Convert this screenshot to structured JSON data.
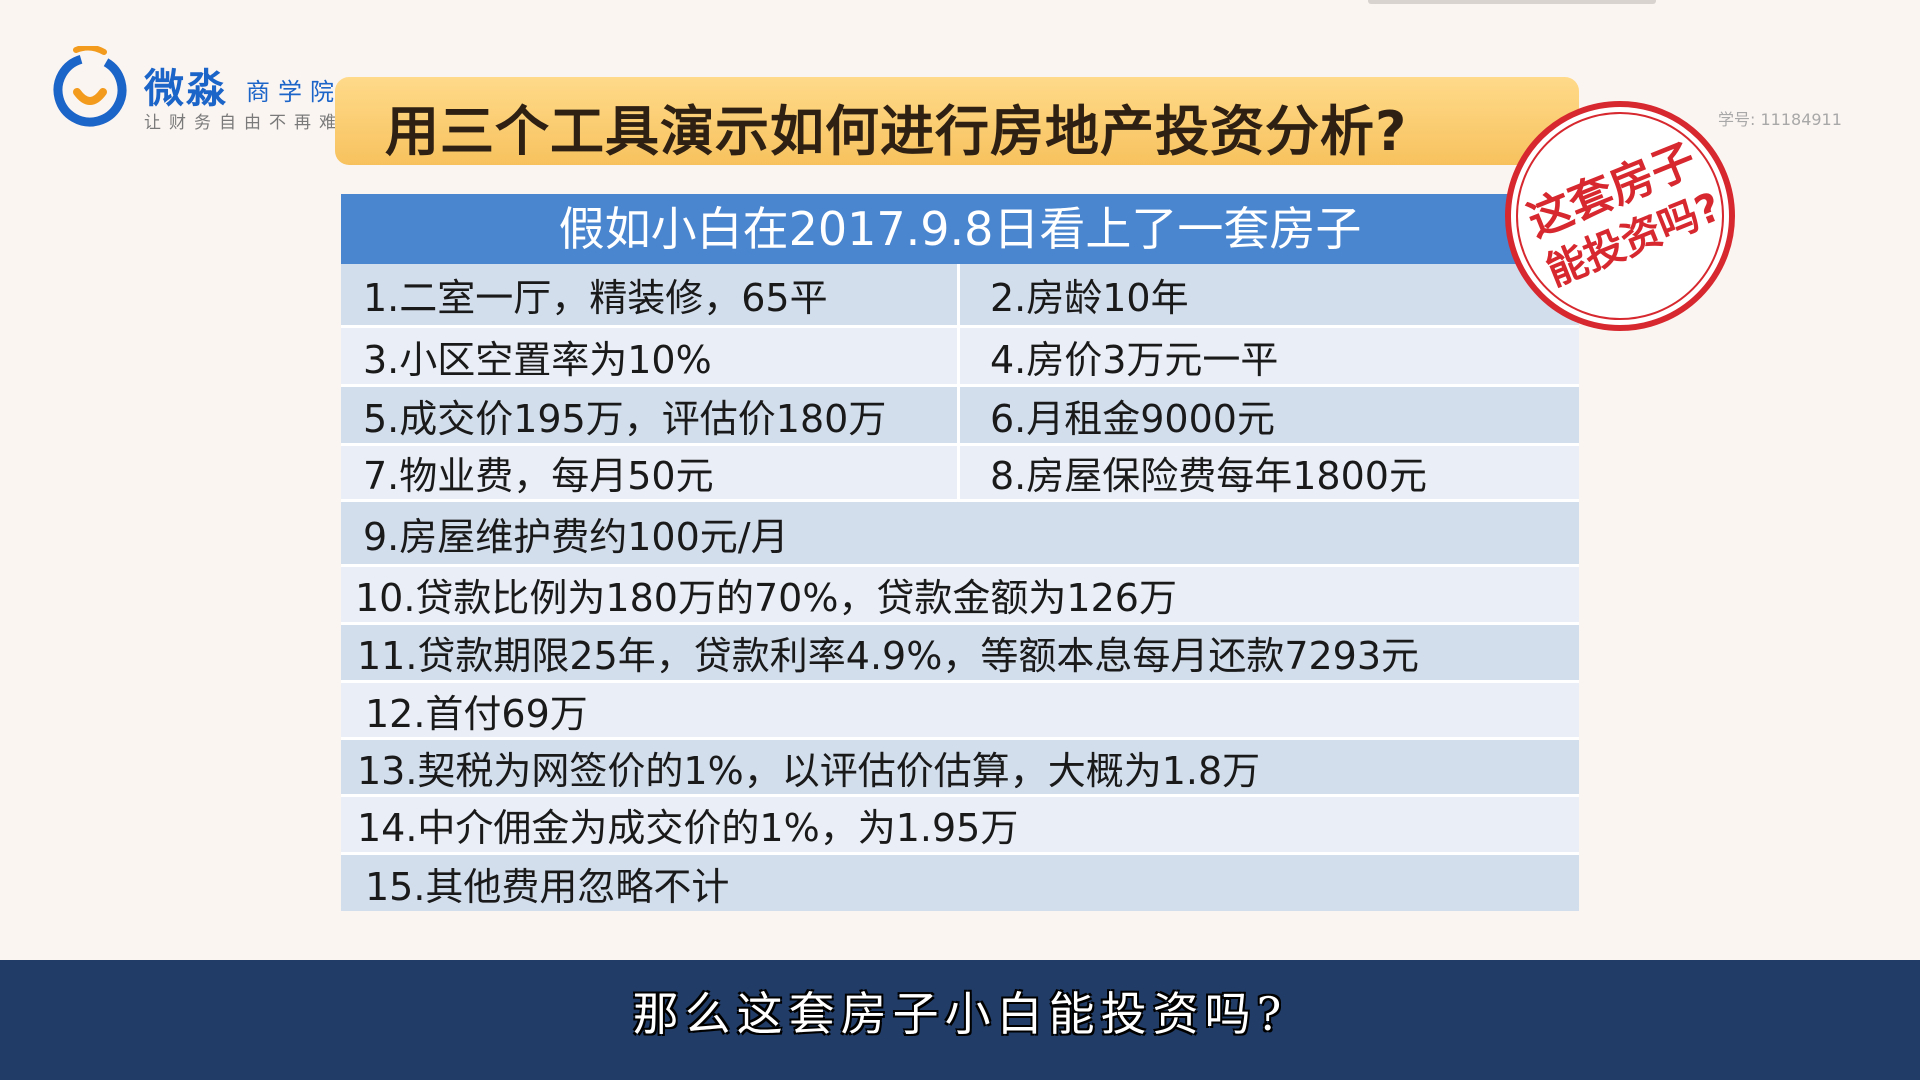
{
  "logo": {
    "brand": "微淼",
    "school": "商学院",
    "slogan": "让财务自由不再难"
  },
  "title": "用三个工具演示如何进行房地产投资分析?",
  "student_no": "学号: 11184911",
  "stamp": {
    "line1": "这套房子",
    "line2": "能投资吗?",
    "color": "#d6282e"
  },
  "table": {
    "header": "假如小白在2017.9.8日看上了一套房子",
    "rows": [
      {
        "left": "1.二室一厅，精装修，65平",
        "right": "2.房龄10年"
      },
      {
        "left": "3.小区空置率为10%",
        "right": "4.房价3万元一平"
      },
      {
        "left": "5.成交价195万，评估价180万",
        "right": "6.月租金9000元"
      },
      {
        "left": "7.物业费，每月50元",
        "right": "8.房屋保险费每年1800元"
      },
      {
        "full": "9.房屋维护费约100元/月"
      },
      {
        "full": "10.贷款比例为180万的70%，贷款金额为126万"
      },
      {
        "full": "11.贷款期限25年，贷款利率4.9%，等额本息每月还款7293元"
      },
      {
        "full": "12.首付69万"
      },
      {
        "full": "13.契税为网签价的1%，以评估价估算，大概为1.8万"
      },
      {
        "full": "14.中介佣金为成交价的1%，为1.95万"
      },
      {
        "full": "15.其他费用忽略不计"
      }
    ]
  },
  "subtitle": "那么这套房子小白能投资吗?",
  "colors": {
    "header_blue": "#4a86d0",
    "brand_blue": "#1b64c8",
    "title_yellow": "#f7c25e",
    "subtitle_bg": "#213c66"
  }
}
